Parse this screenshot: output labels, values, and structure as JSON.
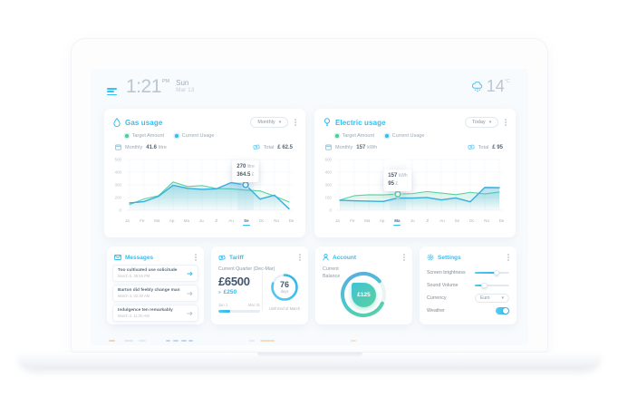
{
  "header": {
    "time": "1:21",
    "meridiem": "PM",
    "day": "Sun",
    "date": "Mar 13",
    "temperature": "14",
    "temperature_unit": "°C",
    "weather": "rain"
  },
  "colors": {
    "accent": "#35bdec",
    "green": "#4ecb9b",
    "text_dark": "#44566b",
    "text_gray": "#8b99a7"
  },
  "charts": [
    {
      "title": "Gas usage",
      "range_selector": "Monthly",
      "legend": [
        {
          "label": "Target Amount"
        },
        {
          "label": "Current Usage"
        }
      ],
      "stats": {
        "period_label": "Monthly",
        "value": "41.6",
        "unit": "litre",
        "total_label": "Total",
        "currency": "£",
        "total": "62.5"
      },
      "chart_data": {
        "type": "area",
        "x_labels": [
          "Ja",
          "Fe",
          "Ma",
          "Ap",
          "Ma",
          "Ju",
          "Jl",
          "Au",
          "Se",
          "Oc",
          "No",
          "De"
        ],
        "yticks": [
          "500",
          "400",
          "300",
          "200",
          "0"
        ],
        "ymax": 500,
        "active_index": 8,
        "series": [
          {
            "name": "Target Amount",
            "color": "#5ed0a5",
            "values": [
              60,
              120,
              155,
              300,
              252,
              262,
              230,
              228,
              215,
              205,
              150,
              88
            ]
          },
          {
            "name": "Current Usage",
            "color": "#38aedd",
            "values": [
              78,
              92,
              148,
              265,
              233,
              222,
              228,
              293,
              270,
              118,
              160,
              15
            ]
          }
        ],
        "marker": {
          "series_index": 1,
          "point_index": 8,
          "value": 270
        },
        "tooltip": {
          "value": "270",
          "unit": "litre",
          "cost": "364.5",
          "currency": "£"
        }
      }
    },
    {
      "title": "Electric usage",
      "range_selector": "Today",
      "legend": [
        {
          "label": "Target Amount"
        },
        {
          "label": "Current Usage"
        }
      ],
      "stats": {
        "period_label": "Monthly",
        "value": "157",
        "unit": "kWh",
        "total_label": "Total",
        "currency": "£",
        "total": "95"
      },
      "chart_data": {
        "type": "area",
        "x_labels": [
          "Ja",
          "Fe",
          "Ma",
          "Ap",
          "Ma",
          "Ju",
          "Jl",
          "Au",
          "Se",
          "Oc",
          "No",
          "De"
        ],
        "yticks": [
          "600",
          "450",
          "300",
          "150",
          "0"
        ],
        "ymax": 600,
        "active_index": 4,
        "series": [
          {
            "name": "Target Amount",
            "color": "#5ed0a5",
            "values": [
              130,
              185,
              197,
              196,
              205,
              212,
              238,
              218,
              198,
              228,
              208,
              232
            ]
          },
          {
            "name": "Current Usage",
            "color": "#38aedd",
            "values": [
              128,
              120,
              116,
              112,
              157,
              155,
              162,
              132,
              156,
              108,
              290,
              287
            ]
          }
        ],
        "marker": {
          "series_index": 0,
          "point_index": 4,
          "value": 205
        },
        "tooltip": {
          "value": "157",
          "unit": "kWh",
          "cost": "95",
          "currency": "£"
        }
      }
    }
  ],
  "messages": {
    "title": "Messages",
    "items": [
      {
        "subject": "Too cultivated use solicitude",
        "time": "March 5, 08:55 PM"
      },
      {
        "subject": "Barton did feebly change man",
        "time": "March 4, 02:30 AM"
      },
      {
        "subject": "Indulgence ten remarkably",
        "time": "March 2, 11:20 AM"
      }
    ]
  },
  "tariff": {
    "title": "Tariff",
    "quarter": "Current Quarter (Dec-Mar)",
    "amount": "£6500",
    "delta": "£250",
    "range_start": "Jan 1",
    "range_end": "Mar 31",
    "progress_percent": 28,
    "days": "76",
    "days_unit": "days",
    "ring_percent": 80,
    "note": "Until End of March"
  },
  "account": {
    "title": "Account",
    "balance_label": "Current Balance",
    "balance": "£125",
    "gauge_percent": 82
  },
  "settings": {
    "title": "Settings",
    "brightness_label": "Screen brightness",
    "brightness_percent": 62,
    "volume_label": "Sound Volume",
    "volume_percent": 27,
    "currency_label": "Currency",
    "currency_value": "Euro",
    "weather_label": "Weather",
    "weather_on": true
  }
}
